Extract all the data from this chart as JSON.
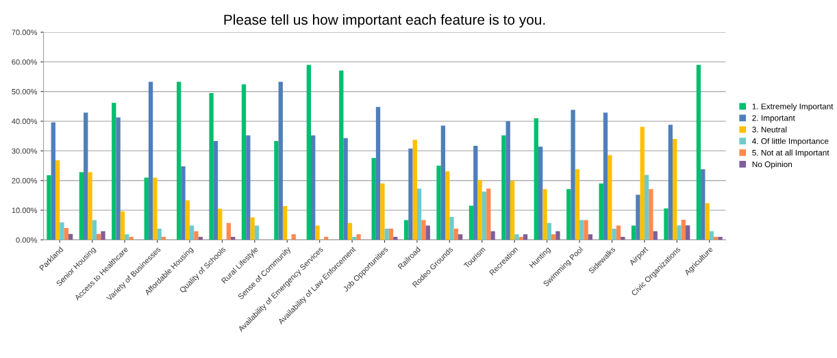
{
  "chart_data": {
    "type": "bar",
    "title": "Please tell us how important each feature is to you.",
    "categories": [
      "Parkland",
      "Senior Housing",
      "Access to Healthcare",
      "Variety of Businesses",
      "Affordable Housing",
      "Quality of Schools",
      "Rural Lifestyle",
      "Sense of Community",
      "Availability of Emergency Services",
      "Availability of Law Enforcement",
      "Job Opportunities",
      "Railroad",
      "Rodeo Grounds",
      "Tourism",
      "Recreation",
      "Hunting",
      "Swimming Pool",
      "Sidewalks",
      "Airport",
      "Civic Organizations",
      "Agriculture"
    ],
    "series": [
      {
        "name": "1. Extremely Important",
        "color": "#00bf6f",
        "values": [
          21.8,
          22.8,
          46.2,
          21.0,
          53.3,
          49.5,
          52.4,
          33.3,
          59.0,
          57.1,
          27.6,
          6.7,
          25.0,
          11.5,
          35.2,
          41.0,
          17.1,
          19.0,
          4.8,
          10.6,
          59.0
        ]
      },
      {
        "name": "2. Important",
        "color": "#4f7fba",
        "values": [
          39.6,
          42.9,
          41.3,
          53.3,
          24.8,
          33.3,
          35.2,
          53.3,
          35.2,
          34.3,
          44.8,
          30.8,
          38.5,
          31.7,
          40.0,
          31.4,
          43.8,
          42.9,
          15.2,
          38.8,
          23.8
        ]
      },
      {
        "name": "3. Neutral",
        "color": "#ffc000",
        "values": [
          26.8,
          22.8,
          9.6,
          21.0,
          13.3,
          10.5,
          7.6,
          11.4,
          4.8,
          5.7,
          19.0,
          33.7,
          23.1,
          20.2,
          20.0,
          17.1,
          23.8,
          28.6,
          38.1,
          34.0,
          12.4
        ]
      },
      {
        "name": "4. Of little Importance",
        "color": "#6fcbcb",
        "values": [
          5.9,
          6.7,
          1.9,
          3.8,
          4.8,
          0,
          4.8,
          0,
          0,
          1.0,
          3.8,
          17.3,
          7.7,
          16.3,
          1.9,
          5.7,
          6.7,
          3.8,
          21.9,
          4.9,
          2.9
        ]
      },
      {
        "name": "5. Not at all Important",
        "color": "#ff8a4f",
        "values": [
          4.0,
          2.0,
          1.0,
          1.0,
          2.9,
          5.7,
          0,
          1.9,
          1.0,
          1.9,
          3.8,
          6.7,
          3.8,
          17.3,
          1.0,
          1.9,
          6.7,
          4.8,
          17.1,
          6.8,
          1.0
        ]
      },
      {
        "name": "No Opinion",
        "color": "#7f5f9a",
        "values": [
          2.0,
          2.9,
          0,
          0,
          1.0,
          1.0,
          0,
          0,
          0,
          0,
          1.0,
          4.8,
          1.9,
          2.9,
          1.9,
          2.9,
          1.9,
          1.0,
          2.9,
          4.9,
          1.0
        ]
      }
    ],
    "ylim": [
      0,
      70
    ],
    "yticks": [
      {
        "value": 0,
        "label": "0.00%"
      },
      {
        "value": 10,
        "label": "10.00%"
      },
      {
        "value": 20,
        "label": "20.00%"
      },
      {
        "value": 30,
        "label": "30.00%"
      },
      {
        "value": 40,
        "label": "40.00%"
      },
      {
        "value": 50,
        "label": "50.00%"
      },
      {
        "value": 60,
        "label": "60.00%"
      },
      {
        "value": 70,
        "label": "70.00%"
      }
    ],
    "grid": "y",
    "legend": "right"
  }
}
